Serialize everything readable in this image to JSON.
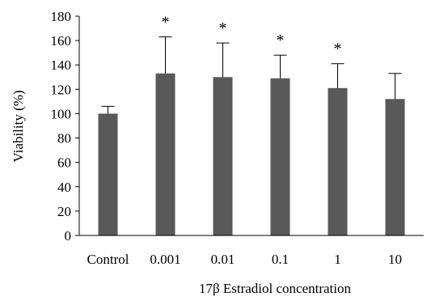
{
  "chart_data": {
    "type": "bar",
    "title": "",
    "xlabel": "17β Estradiol concentration",
    "ylabel": "Viability (%)",
    "ylim": [
      0,
      180
    ],
    "yticks": [
      0,
      20,
      40,
      60,
      80,
      100,
      120,
      140,
      160,
      180
    ],
    "categories": [
      "Control",
      "0.001",
      "0.01",
      "0.1",
      "1",
      "10"
    ],
    "values": [
      100,
      133,
      130,
      129,
      121,
      112
    ],
    "error_upper": [
      6,
      30,
      28,
      19,
      20,
      21
    ],
    "significance": [
      "",
      "*",
      "*",
      "*",
      "*",
      ""
    ],
    "bar_color": "#595959",
    "grid": false,
    "legend": "none"
  }
}
